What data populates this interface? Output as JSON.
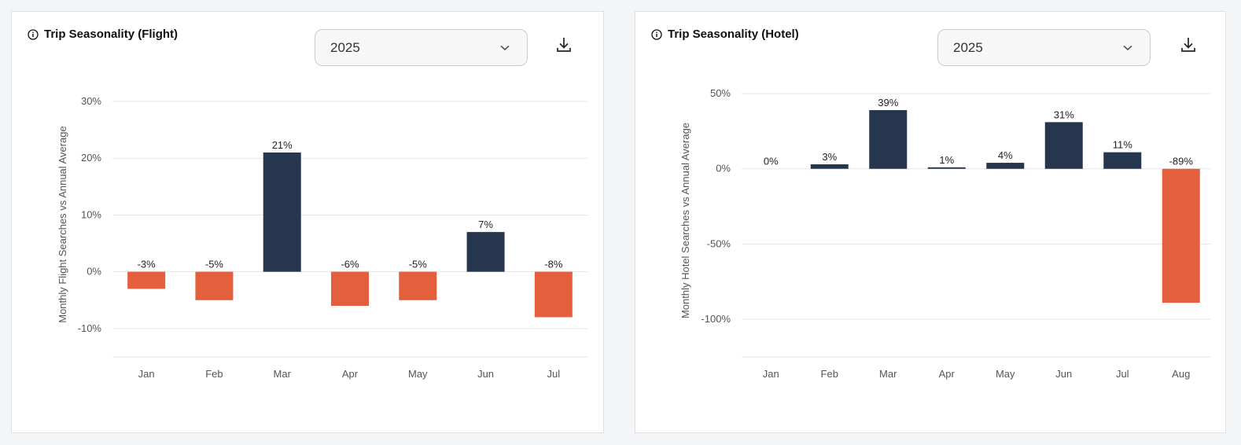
{
  "colors": {
    "positive": "#26364f",
    "negative": "#e45f3c",
    "grid": "#e3e5e8",
    "baseline": "#c8ccd1"
  },
  "panels": [
    {
      "title": "Trip Seasonality (Flight)",
      "year_select": {
        "value": "2025"
      },
      "icons": {
        "info": "info-icon",
        "download": "download-icon",
        "dropdown": "chevron-down-icon"
      },
      "chart_data": {
        "type": "bar",
        "categories": [
          "Jan",
          "Feb",
          "Mar",
          "Apr",
          "May",
          "Jun",
          "Jul"
        ],
        "values": [
          -3,
          -5,
          21,
          -6,
          -5,
          7,
          -8
        ],
        "value_labels": [
          "-3%",
          "-5%",
          "21%",
          "-6%",
          "-5%",
          "7%",
          "-8%"
        ],
        "ylabel": "Monthly Flight Searches vs Annual Average",
        "ylim": [
          -15,
          30
        ],
        "yticks": [
          -10,
          0,
          10,
          20,
          30
        ],
        "ytick_labels": [
          "-10%",
          "0%",
          "10%",
          "20%",
          "30%"
        ],
        "grid": true
      }
    },
    {
      "title": "Trip Seasonality (Hotel)",
      "year_select": {
        "value": "2025"
      },
      "icons": {
        "info": "info-icon",
        "download": "download-icon",
        "dropdown": "chevron-down-icon"
      },
      "chart_data": {
        "type": "bar",
        "categories": [
          "Jan",
          "Feb",
          "Mar",
          "Apr",
          "May",
          "Jun",
          "Jul",
          "Aug"
        ],
        "values": [
          0,
          3,
          39,
          1,
          4,
          31,
          11,
          -89
        ],
        "value_labels": [
          "0%",
          "3%",
          "39%",
          "1%",
          "4%",
          "31%",
          "11%",
          "-89%"
        ],
        "ylabel": "Monthly Hotel Searches vs Annual Average",
        "ylim": [
          -125,
          50
        ],
        "yticks": [
          -100,
          -50,
          0,
          50
        ],
        "ytick_labels": [
          "-100%",
          "-50%",
          "0%",
          "50%"
        ],
        "grid": true
      }
    }
  ]
}
